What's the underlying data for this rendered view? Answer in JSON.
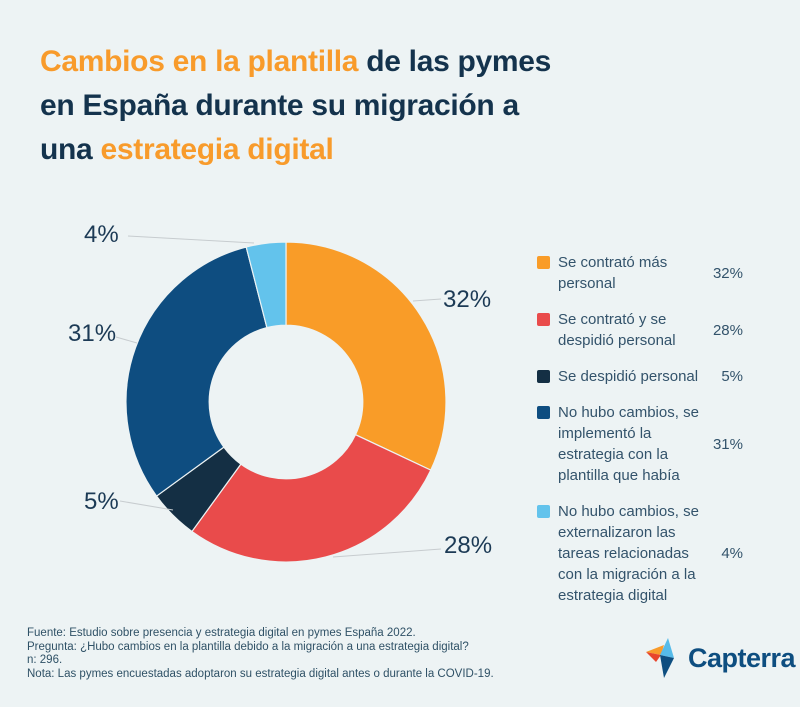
{
  "page": {
    "background": "#EDF3F4"
  },
  "title": {
    "line1_orange": "Cambios en la plantilla",
    "line1_dark": " de las pymes",
    "line2_dark": "en España durante su migración a",
    "line3_dark": "una ",
    "line3_orange": "estrategia digital",
    "accent_color": "#F89B2B",
    "dark_color": "#14334D"
  },
  "chart_data": {
    "type": "pie",
    "subtype": "donut",
    "title": "Cambios en la plantilla de las pymes en España durante su migración a una estrategia digital",
    "categories": [
      "Se contrató más personal",
      "Se contrató y se despidió personal",
      "Se despidió personal",
      "No hubo cambios, se implementó la estrategia con la plantilla que había",
      "No hubo cambios, se externalizaron las tareas relacionadas con la migración a la estrategia digital"
    ],
    "values": [
      32,
      28,
      5,
      31,
      4
    ],
    "unit": "%",
    "data_labels": [
      "32%",
      "28%",
      "5%",
      "31%",
      "4%"
    ],
    "colors": [
      "#F99C28",
      "#E94B4B",
      "#142F44",
      "#0E4D80",
      "#63C3EC"
    ],
    "start_angle_deg": 0,
    "direction": "clockwise",
    "inner_radius_ratio": 0.48,
    "legend_position": "right"
  },
  "legend": {
    "items": [
      {
        "label": "Se contrató más personal",
        "value": "32%",
        "color": "#F99C28"
      },
      {
        "label": "Se contrató y se despidió personal",
        "value": "28%",
        "color": "#E94B4B"
      },
      {
        "label": "Se despidió personal",
        "value": "5%",
        "color": "#142F44"
      },
      {
        "label": "No hubo cambios, se implementó la estrategia con la plantilla que había",
        "value": "31%",
        "color": "#0E4D80"
      },
      {
        "label": "No hubo cambios, se externalizaron las tareas relacionadas con la migración a la estrategia digital",
        "value": "4%",
        "color": "#63C3EC"
      }
    ]
  },
  "footer": {
    "lines": [
      "Fuente: Estudio sobre presencia y estrategia digital en pymes España 2022.",
      "Pregunta: ¿Hubo cambios en la plantilla debido a la migración a una estrategia digital?",
      "n: 296.",
      "Nota: Las pymes encuestadas adoptaron su estrategia digital antes o durante la COVID-19."
    ]
  },
  "logo": {
    "text": "Capterra",
    "wordmark_color": "#0E4E80",
    "icon_colors": [
      "#F89B2B",
      "#E8452C",
      "#56BBE9",
      "#0E4E80"
    ]
  }
}
